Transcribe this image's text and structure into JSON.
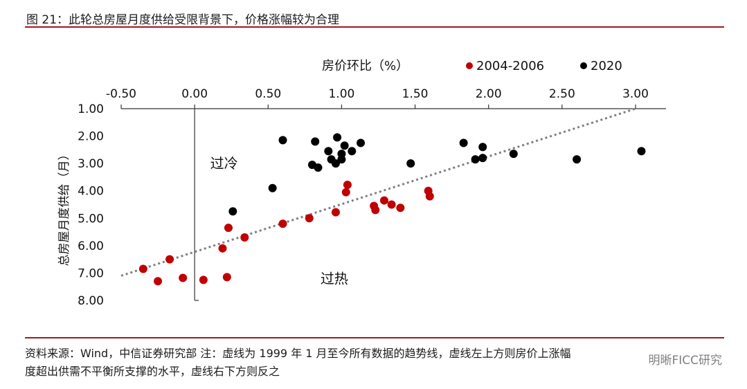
{
  "figure": {
    "title": "图 21：此轮总房屋月度供给受限背景下，价格涨幅较为合理"
  },
  "note": {
    "line1": "资料来源：Wind，中信证券研究部   注：虚线为 1999 年 1 月至今所有数据的趋势线，虚线左上方则房价上涨幅",
    "line2": "度超出供需不平衡所支撑的水平，虚线右下方则反之"
  },
  "watermark": "明晰FICC研究",
  "chart_data": {
    "type": "scatter",
    "xlabel": "房价环比（%）",
    "ylabel": "总房屋月度供给（月）",
    "xlim": [
      -0.5,
      3.0
    ],
    "ylim": [
      1.0,
      8.0
    ],
    "y_reversed": true,
    "x_axis_position": "top",
    "x_ticks": [
      "-0.50",
      "0.00",
      "0.50",
      "1.00",
      "1.50",
      "2.00",
      "2.50",
      "3.00"
    ],
    "y_ticks": [
      "1.00",
      "2.00",
      "3.00",
      "4.00",
      "5.00",
      "6.00",
      "7.00",
      "8.00"
    ],
    "legend_placement": "top-right",
    "grid": false,
    "annotations": [
      {
        "text": "过冷",
        "x": 0.2,
        "y": 3.0
      },
      {
        "text": "过热",
        "x": 0.95,
        "y": 7.2
      }
    ],
    "trendline": {
      "style": "dotted",
      "color": "#7f7f7f",
      "from": [
        -0.5,
        7.1
      ],
      "to": [
        3.0,
        1.0
      ]
    },
    "series": [
      {
        "name": "2004-2006",
        "color": "#c00000",
        "points": [
          [
            -0.35,
            6.85
          ],
          [
            -0.25,
            7.3
          ],
          [
            -0.17,
            6.5
          ],
          [
            -0.08,
            7.18
          ],
          [
            0.06,
            7.25
          ],
          [
            0.19,
            6.1
          ],
          [
            0.22,
            7.15
          ],
          [
            0.23,
            5.35
          ],
          [
            0.34,
            5.7
          ],
          [
            0.6,
            5.2
          ],
          [
            0.78,
            5.0
          ],
          [
            0.96,
            4.78
          ],
          [
            1.03,
            4.05
          ],
          [
            1.04,
            3.78
          ],
          [
            1.22,
            4.55
          ],
          [
            1.23,
            4.7
          ],
          [
            1.29,
            4.35
          ],
          [
            1.34,
            4.5
          ],
          [
            1.4,
            4.62
          ],
          [
            1.59,
            4.0
          ],
          [
            1.6,
            4.2
          ]
        ]
      },
      {
        "name": "2020",
        "color": "#000000",
        "points": [
          [
            0.26,
            4.75
          ],
          [
            0.53,
            3.9
          ],
          [
            0.6,
            2.15
          ],
          [
            0.8,
            3.05
          ],
          [
            0.82,
            2.2
          ],
          [
            0.84,
            3.15
          ],
          [
            0.91,
            2.55
          ],
          [
            0.93,
            2.85
          ],
          [
            0.96,
            3.0
          ],
          [
            0.97,
            2.05
          ],
          [
            1.0,
            2.65
          ],
          [
            1.0,
            2.85
          ],
          [
            1.02,
            2.35
          ],
          [
            1.07,
            2.55
          ],
          [
            1.13,
            2.25
          ],
          [
            1.47,
            3.0
          ],
          [
            1.83,
            2.25
          ],
          [
            1.91,
            2.85
          ],
          [
            1.96,
            2.8
          ],
          [
            1.96,
            2.4
          ],
          [
            2.17,
            2.65
          ],
          [
            2.6,
            2.85
          ],
          [
            3.04,
            2.55
          ]
        ]
      }
    ]
  }
}
